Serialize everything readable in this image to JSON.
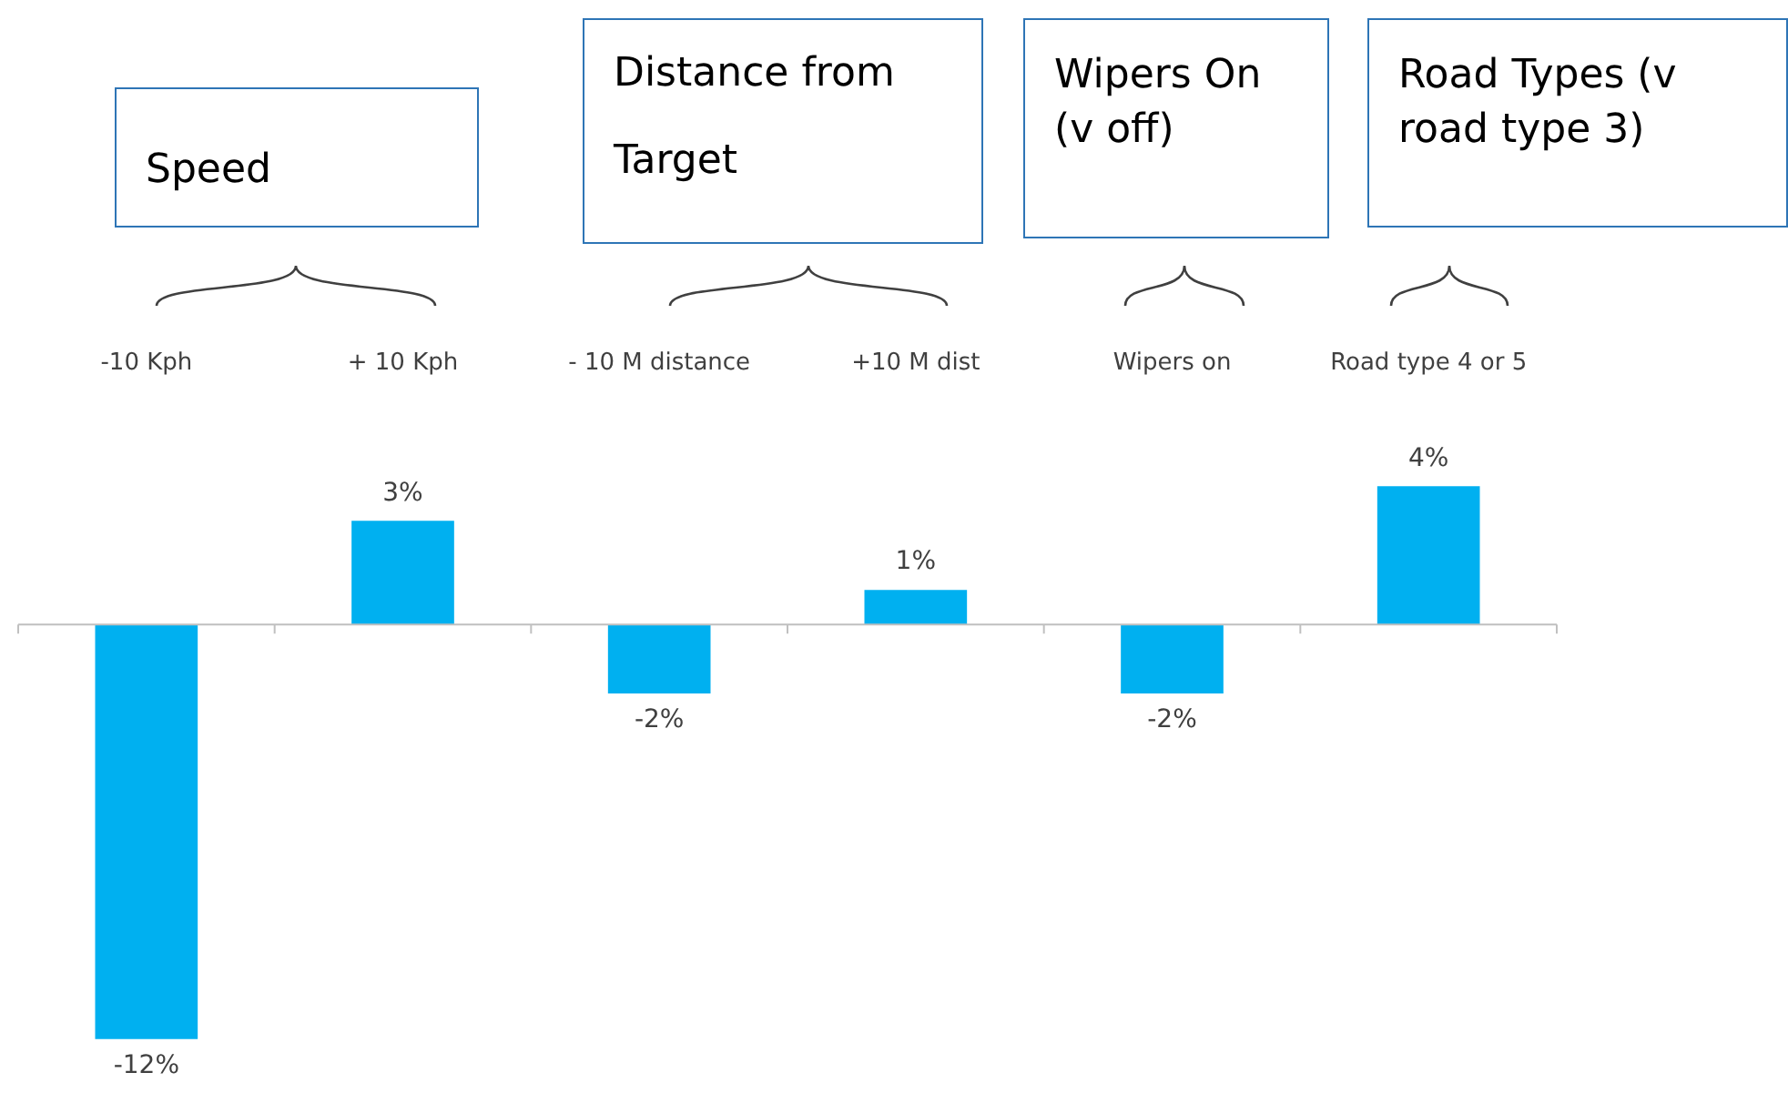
{
  "chart_data": {
    "type": "bar",
    "categories": [
      "-10 Kph",
      "+ 10 Kph",
      "- 10 M distance",
      "+10 M dist",
      "Wipers on",
      "Road type 4 or 5"
    ],
    "values": [
      -12,
      3,
      -2,
      1,
      -2,
      4
    ],
    "value_labels": [
      "-12%",
      "3%",
      "-2%",
      "1%",
      "-2%",
      "4%"
    ],
    "color": "#00b0f0",
    "annotations": [
      "Speed",
      "Distance from Target",
      "Wipers On (v off)",
      "Road Types (v road type 3)"
    ]
  }
}
